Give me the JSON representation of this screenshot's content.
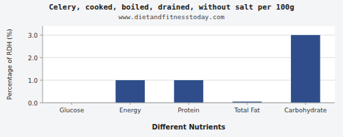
{
  "chart_data": {
    "type": "bar",
    "title": "Celery, cooked, boiled, drained, without salt per 100g",
    "subtitle": "www.dietandfitnesstoday.com",
    "x_label": "Different Nutrients",
    "y_label": "Percentage of RDH (%)",
    "categories": [
      "Glucose",
      "Energy",
      "Protein",
      "Total Fat",
      "Carbohydrate"
    ],
    "values": [
      0.0,
      1.0,
      1.0,
      0.05,
      3.0
    ],
    "color": "#2e4d8a",
    "ylim": [
      0,
      3.4
    ],
    "yticks": [
      {
        "value": 0,
        "label": "0.0"
      },
      {
        "value": 1,
        "label": "1.0"
      },
      {
        "value": 2,
        "label": "2.0"
      },
      {
        "value": 3,
        "label": "3.0"
      }
    ],
    "grid": true
  }
}
